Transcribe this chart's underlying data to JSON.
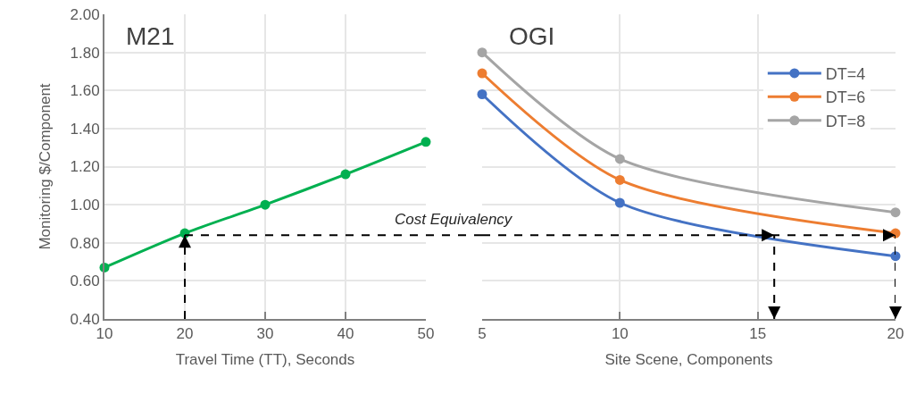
{
  "chart_data": [
    {
      "type": "line",
      "title": "M21",
      "xlabel": "Travel Time (TT), Seconds",
      "ylabel": "Monitoring $/Component",
      "x": [
        10,
        20,
        30,
        40,
        50
      ],
      "series": [
        {
          "color": "#00b050",
          "values": [
            0.67,
            0.85,
            1.0,
            1.16,
            1.33
          ]
        }
      ],
      "xlim": [
        10,
        50
      ],
      "xticks": [
        10,
        20,
        30,
        40,
        50
      ],
      "ylim": [
        0.4,
        2.0
      ],
      "yticks": [
        {
          "value": 0.4,
          "label": "0.40"
        },
        {
          "value": 0.6,
          "label": "0.60"
        },
        {
          "value": 0.8,
          "label": "0.80"
        },
        {
          "value": 1.0,
          "label": "1.00"
        },
        {
          "value": 1.2,
          "label": "1.20"
        },
        {
          "value": 1.4,
          "label": "1.40"
        },
        {
          "value": 1.6,
          "label": "1.60"
        },
        {
          "value": 1.8,
          "label": "1.80"
        },
        {
          "value": 2.0,
          "label": "2.00"
        }
      ],
      "grid": true,
      "marker": "circle",
      "line_style": "solid",
      "ref_lines": [
        {
          "axis": "y",
          "value": 0.84,
          "label": "Cost Equivalency",
          "color": "#000000",
          "line_style": "dashed"
        },
        {
          "axis": "x",
          "value": 20,
          "color": "#000000",
          "line_style": "dashed"
        }
      ]
    },
    {
      "type": "line",
      "title": "OGI",
      "xlabel": "Site Scene, Components",
      "x": [
        5,
        10,
        20
      ],
      "series": [
        {
          "name": "DT=4",
          "color": "#4472c4",
          "values": [
            1.58,
            1.01,
            0.73
          ]
        },
        {
          "name": "DT=6",
          "color": "#ed7d31",
          "values": [
            1.69,
            1.13,
            0.85
          ]
        },
        {
          "name": "DT=8",
          "color": "#a5a5a5",
          "values": [
            1.8,
            1.24,
            0.96
          ]
        }
      ],
      "xlim": [
        5,
        20
      ],
      "xticks": [
        5,
        10,
        15,
        20
      ],
      "ylim": [
        0.4,
        2.0
      ],
      "yticks": [
        {
          "value": 0.4,
          "label": null
        },
        {
          "value": 0.6,
          "label": null
        },
        {
          "value": 0.8,
          "label": null
        },
        {
          "value": 1.0,
          "label": null
        },
        {
          "value": 1.2,
          "label": null
        },
        {
          "value": 1.4,
          "label": null
        },
        {
          "value": 1.6,
          "label": null
        },
        {
          "value": 1.8,
          "label": null
        },
        {
          "value": 2.0,
          "label": null
        }
      ],
      "tick_labels": "x",
      "grid": true,
      "legend": "top right",
      "marker": "circle",
      "line_style": "solid",
      "ref_lines": [
        {
          "axis": "y",
          "value": 0.84,
          "color": "#000000",
          "line_style": "dashed"
        },
        {
          "axis": "x",
          "value": 15.6,
          "color": "#000000",
          "line_style": "dashed"
        },
        {
          "axis": "x",
          "value": 20,
          "color": "#000000",
          "line_style": "dashed"
        }
      ]
    }
  ]
}
